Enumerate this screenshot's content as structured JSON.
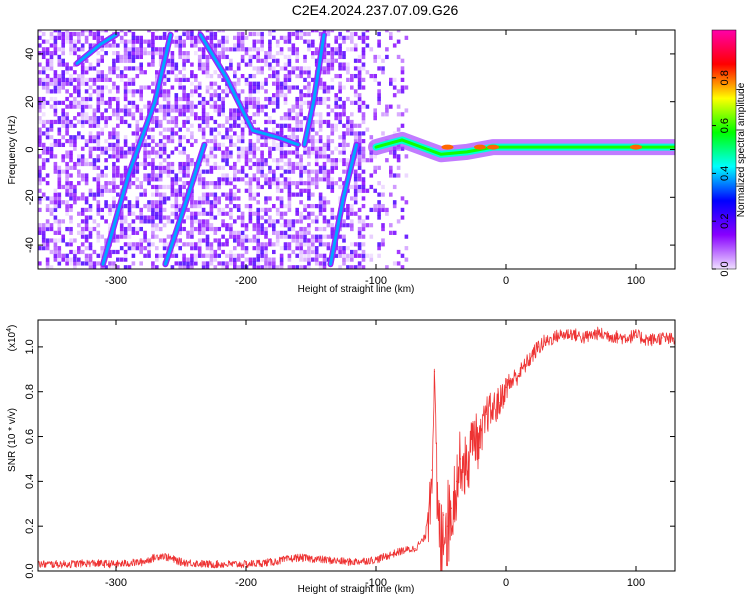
{
  "title": "C2E4.2024.237.07.09.G26",
  "chart_data": [
    {
      "type": "heatmap",
      "xlabel": "Height of straight line (km)",
      "ylabel": "Frequency (Hz)",
      "xlim": [
        -360,
        130
      ],
      "ylim": [
        -50,
        50
      ],
      "x_ticks": [
        -300,
        -200,
        -100,
        0,
        100
      ],
      "y_ticks": [
        -40,
        -20,
        0,
        20,
        40
      ],
      "colorbar": {
        "label": "Normalized spectral amplitude",
        "range": [
          0,
          1
        ],
        "ticks": [
          0.0,
          0.2,
          0.4,
          0.6,
          0.8
        ],
        "colormap": [
          "#f0e0ff",
          "#8800ff",
          "#0000ff",
          "#00ffff",
          "#00ff00",
          "#ffff00",
          "#ff0000",
          "#ff00aa"
        ]
      },
      "ridges": [
        {
          "name": "carrier-strong",
          "points": [
            [
              -100,
              1
            ],
            [
              -80,
              4
            ],
            [
              -65,
              1
            ],
            [
              -50,
              -2
            ],
            [
              -30,
              -1
            ],
            [
              -10,
              1
            ],
            [
              20,
              1
            ],
            [
              60,
              1
            ],
            [
              100,
              1
            ],
            [
              130,
              1
            ]
          ]
        },
        {
          "name": "streak-1",
          "points": [
            [
              -310,
              -48
            ],
            [
              -290,
              -10
            ],
            [
              -270,
              20
            ],
            [
              -258,
              48
            ]
          ]
        },
        {
          "name": "streak-2",
          "points": [
            [
              -262,
              -48
            ],
            [
              -245,
              -20
            ],
            [
              -232,
              2
            ]
          ]
        },
        {
          "name": "streak-3",
          "points": [
            [
              -135,
              -48
            ],
            [
              -125,
              -20
            ],
            [
              -115,
              2
            ]
          ]
        },
        {
          "name": "streak-4",
          "points": [
            [
              -155,
              2
            ],
            [
              -148,
              20
            ],
            [
              -140,
              48
            ]
          ]
        },
        {
          "name": "streak-5",
          "points": [
            [
              -330,
              36
            ],
            [
              -312,
              44
            ],
            [
              -300,
              48
            ]
          ]
        },
        {
          "name": "streak-6",
          "points": [
            [
              -235,
              48
            ],
            [
              -215,
              30
            ],
            [
              -195,
              8
            ],
            [
              -175,
              5
            ],
            [
              -160,
              2
            ]
          ]
        }
      ]
    },
    {
      "type": "line",
      "xlabel": "Height of straight line (km)",
      "ylabel": "SNR (10 * v/v)",
      "y_multiplier": "(x10",
      "y_multiplier_exp": "4",
      "y_multiplier_close": ")",
      "xlim": [
        -360,
        130
      ],
      "ylim": [
        0,
        1.12
      ],
      "x_ticks": [
        -300,
        -200,
        -100,
        0,
        100
      ],
      "y_ticks": [
        0.0,
        0.2,
        0.4,
        0.6,
        0.8,
        1.0
      ],
      "series": [
        {
          "color": "#ee3333",
          "x": [
            -360,
            -340,
            -320,
            -300,
            -280,
            -265,
            -250,
            -230,
            -200,
            -180,
            -160,
            -140,
            -120,
            -100,
            -90,
            -80,
            -70,
            -62,
            -57,
            -55,
            -53,
            -50,
            -48,
            -45,
            -42,
            -38,
            -35,
            -30,
            -25,
            -20,
            -15,
            -10,
            -5,
            0,
            5,
            10,
            15,
            20,
            25,
            30,
            40,
            50,
            60,
            70,
            80,
            90,
            100,
            110,
            120,
            130
          ],
          "y": [
            0.03,
            0.03,
            0.035,
            0.03,
            0.04,
            0.07,
            0.04,
            0.03,
            0.03,
            0.04,
            0.06,
            0.05,
            0.04,
            0.05,
            0.07,
            0.09,
            0.1,
            0.15,
            0.45,
            0.89,
            0.3,
            0.05,
            0.25,
            0.2,
            0.28,
            0.4,
            0.5,
            0.45,
            0.62,
            0.55,
            0.7,
            0.72,
            0.75,
            0.82,
            0.85,
            0.88,
            0.92,
            0.96,
            1.0,
            1.02,
            1.05,
            1.06,
            1.04,
            1.06,
            1.05,
            1.04,
            1.05,
            1.03,
            1.04,
            1.03
          ]
        }
      ]
    }
  ]
}
